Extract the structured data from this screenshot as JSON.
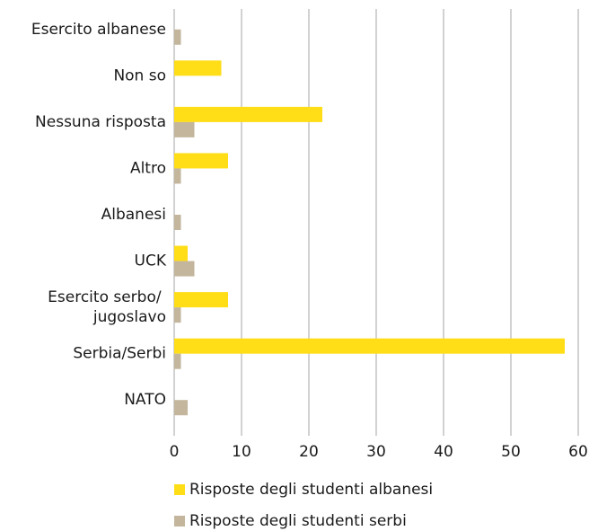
{
  "chart_data": {
    "type": "hbar",
    "categories": [
      "Esercito albanese",
      "Non so",
      "Nessuna risposta",
      "Altro",
      "Albanesi",
      "UCK",
      "Esercito serbo/\njugoslavo",
      "Serbia/Serbi",
      "NATO"
    ],
    "series": [
      {
        "name": "Risposte degli studenti albanesi",
        "color": "#ffdd17",
        "values": [
          0,
          7,
          22,
          8,
          0,
          2,
          8,
          58,
          0
        ]
      },
      {
        "name": "Risposte degli studenti serbi",
        "color": "#c3b69c",
        "values": [
          1,
          0,
          3,
          1,
          1,
          3,
          1,
          1,
          2
        ]
      }
    ],
    "xlim": [
      0,
      60
    ],
    "xticks": [
      0,
      10,
      20,
      30,
      40,
      50,
      60
    ],
    "grid": true,
    "legend": "bottom"
  }
}
